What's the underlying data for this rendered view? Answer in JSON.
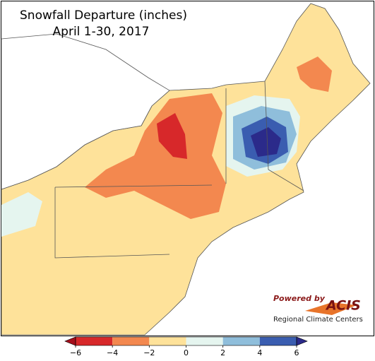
{
  "title": "Snowfall Departure (inches)",
  "subtitle": "April 1-30, 2017",
  "colorbar": {
    "ticks": [
      {
        "value": -6,
        "label": "−6"
      },
      {
        "value": -4,
        "label": "−4"
      },
      {
        "value": -2,
        "label": "−2"
      },
      0,
      2,
      4,
      6
    ],
    "colors": [
      "#d7282a",
      "#f3884f",
      "#fee29a",
      "#e5f5ef",
      "#8fbedb",
      "#3a5db0"
    ],
    "under_color": "#a50f1c",
    "over_color": "#2b2a8a"
  },
  "logo": {
    "powered_by": "Powered by",
    "name": "ACIS",
    "org": "Regional Climate Centers"
  }
}
